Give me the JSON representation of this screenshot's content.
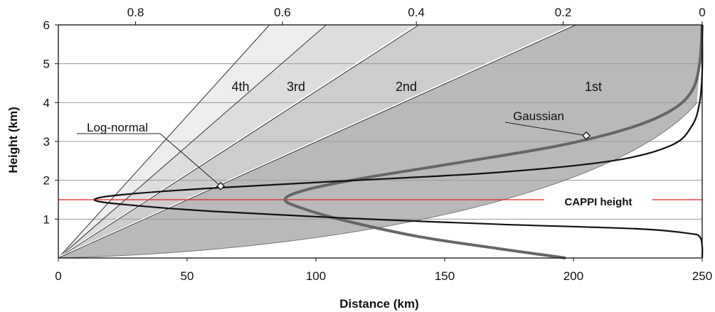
{
  "chart_data": {
    "type": "line",
    "xlabel": "Distance (km)",
    "ylabel": "Height (km)",
    "xlim": [
      0,
      250
    ],
    "ylim": [
      0,
      6
    ],
    "x_ticks": [
      "0",
      "50",
      "100",
      "150",
      "200",
      "250"
    ],
    "y_ticks": [
      "1",
      "2",
      "3",
      "4",
      "5",
      "6"
    ],
    "top_axis_ticks": [
      "0.8",
      "0.6",
      "0.4",
      "0.2",
      "0"
    ],
    "top_axis_values": [
      0.8,
      0.6,
      0.4,
      0.2,
      0
    ],
    "grid": "horizontal",
    "beam_regions": [
      {
        "label": "4th",
        "elevation_top_km_at_250": 6.0,
        "top_distance_at_6km": 82
      },
      {
        "label": "3rd",
        "top_distance_at_6km": 104
      },
      {
        "label": "2nd",
        "top_distance_at_6km": 139
      },
      {
        "label": "1st",
        "top_distance_at_6km": 200
      }
    ],
    "region_labels": [
      "4th",
      "3rd",
      "2nd",
      "1st"
    ],
    "series": [
      {
        "name": "Log-normal",
        "color": "#111111",
        "points": [
          [
            250,
            0.0
          ],
          [
            250,
            0.3
          ],
          [
            249,
            0.55
          ],
          [
            245,
            0.63
          ],
          [
            225,
            0.75
          ],
          [
            170,
            0.87
          ],
          [
            110,
            1.03
          ],
          [
            60,
            1.2
          ],
          [
            25,
            1.38
          ],
          [
            14,
            1.5
          ],
          [
            25,
            1.63
          ],
          [
            60,
            1.8
          ],
          [
            110,
            1.98
          ],
          [
            170,
            2.2
          ],
          [
            215,
            2.5
          ],
          [
            238,
            2.9
          ],
          [
            246,
            3.4
          ],
          [
            249,
            4.0
          ],
          [
            250,
            4.8
          ],
          [
            250,
            6.0
          ]
        ]
      },
      {
        "name": "Gaussian",
        "color": "#666666",
        "points": [
          [
            197,
            0.0
          ],
          [
            170,
            0.25
          ],
          [
            140,
            0.55
          ],
          [
            112,
            0.95
          ],
          [
            96,
            1.25
          ],
          [
            88,
            1.5
          ],
          [
            96,
            1.75
          ],
          [
            118,
            2.05
          ],
          [
            155,
            2.45
          ],
          [
            195,
            2.9
          ],
          [
            222,
            3.35
          ],
          [
            238,
            3.8
          ],
          [
            246,
            4.3
          ],
          [
            249,
            5.0
          ],
          [
            250,
            6.0
          ]
        ]
      }
    ],
    "annotations": {
      "lognormal_label": "Log-normal",
      "lognormal_marker": [
        63,
        1.85
      ],
      "gaussian_label": "Gaussian",
      "gaussian_marker": [
        205,
        3.15
      ],
      "cappi_label": "CAPPI height",
      "cappi_height": 1.5,
      "cappi_color": "#e02020"
    },
    "colors": {
      "fill_outer": "#ededed",
      "fill_middle": "#dddddd",
      "fill_inner": "#cdcdcd",
      "fill_first": "#b9b9b9",
      "line": "#333333",
      "cappi": "#e02020"
    }
  }
}
